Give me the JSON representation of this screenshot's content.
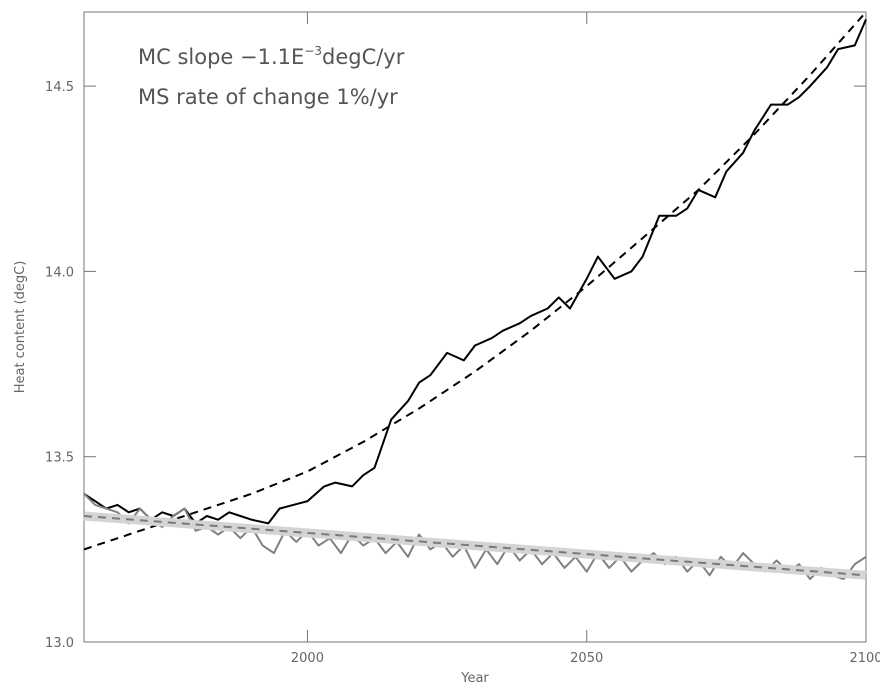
{
  "chart_data": {
    "type": "line",
    "xlabel": "Year",
    "ylabel": "Heat content (degC)",
    "annotations": [
      {
        "text": "MC slope −1.1E",
        "sup": "−3",
        "after": "degC/yr"
      },
      {
        "text": "MS rate of change 1%/yr"
      }
    ],
    "xlim": [
      1960,
      2100
    ],
    "xticks": [
      2000,
      2050,
      2100
    ],
    "ylim": [
      13.0,
      14.7
    ],
    "yticks": [
      {
        "value": 13.0,
        "label": "13.0"
      },
      13.5,
      {
        "value": 14.0,
        "label": "14.0"
      },
      14.5
    ],
    "series": [
      {
        "color": "#000000",
        "style": "solid",
        "x": [
          1960,
          1962,
          1964,
          1966,
          1968,
          1970,
          1972,
          1974,
          1976,
          1978,
          1980,
          1982,
          1984,
          1986,
          1988,
          1990,
          1993,
          1995,
          2000,
          2003,
          2005,
          2008,
          2010,
          2012,
          2015,
          2018,
          2020,
          2022,
          2025,
          2028,
          2030,
          2033,
          2035,
          2038,
          2040,
          2043,
          2045,
          2047,
          2050,
          2052,
          2055,
          2058,
          2060,
          2063,
          2066,
          2068,
          2070,
          2073,
          2075,
          2078,
          2080,
          2083,
          2086,
          2088,
          2090,
          2093,
          2095,
          2098,
          2100
        ],
        "values": [
          13.4,
          13.38,
          13.36,
          13.37,
          13.35,
          13.36,
          13.33,
          13.35,
          13.34,
          13.36,
          13.32,
          13.34,
          13.33,
          13.35,
          13.34,
          13.33,
          13.32,
          13.36,
          13.38,
          13.42,
          13.43,
          13.42,
          13.45,
          13.47,
          13.6,
          13.65,
          13.7,
          13.72,
          13.78,
          13.76,
          13.8,
          13.82,
          13.84,
          13.86,
          13.88,
          13.9,
          13.93,
          13.9,
          13.98,
          14.04,
          13.98,
          14.0,
          14.04,
          14.15,
          14.15,
          14.17,
          14.22,
          14.2,
          14.27,
          14.32,
          14.38,
          14.45,
          14.45,
          14.47,
          14.5,
          14.55,
          14.6,
          14.61,
          14.68
        ]
      },
      {
        "color": "#000000",
        "style": "dashed",
        "x": [
          1960,
          1970,
          1980,
          1990,
          2000,
          2010,
          2020,
          2030,
          2040,
          2050,
          2060,
          2070,
          2080,
          2090,
          2100
        ],
        "values": [
          13.25,
          13.3,
          13.35,
          13.4,
          13.46,
          13.54,
          13.63,
          13.73,
          13.84,
          13.96,
          14.09,
          14.22,
          14.37,
          14.53,
          14.7
        ]
      },
      {
        "color": "#808080",
        "style": "solid",
        "x": [
          1960,
          1962,
          1964,
          1966,
          1968,
          1970,
          1972,
          1974,
          1976,
          1978,
          1980,
          1982,
          1984,
          1986,
          1988,
          1990,
          1992,
          1994,
          1996,
          1998,
          2000,
          2002,
          2004,
          2006,
          2008,
          2010,
          2012,
          2014,
          2016,
          2018,
          2020,
          2022,
          2024,
          2026,
          2028,
          2030,
          2032,
          2034,
          2036,
          2038,
          2040,
          2042,
          2044,
          2046,
          2048,
          2050,
          2052,
          2054,
          2056,
          2058,
          2060,
          2062,
          2064,
          2066,
          2068,
          2070,
          2072,
          2074,
          2076,
          2078,
          2080,
          2082,
          2084,
          2086,
          2088,
          2090,
          2092,
          2094,
          2096,
          2098,
          2100
        ],
        "values": [
          13.4,
          13.37,
          13.36,
          13.35,
          13.32,
          13.36,
          13.33,
          13.31,
          13.34,
          13.36,
          13.3,
          13.31,
          13.29,
          13.31,
          13.28,
          13.31,
          13.26,
          13.24,
          13.3,
          13.27,
          13.3,
          13.26,
          13.28,
          13.24,
          13.29,
          13.26,
          13.28,
          13.24,
          13.27,
          13.23,
          13.29,
          13.25,
          13.27,
          13.23,
          13.26,
          13.2,
          13.25,
          13.21,
          13.26,
          13.22,
          13.25,
          13.21,
          13.24,
          13.2,
          13.23,
          13.19,
          13.24,
          13.2,
          13.23,
          13.19,
          13.22,
          13.24,
          13.21,
          13.23,
          13.19,
          13.22,
          13.18,
          13.23,
          13.2,
          13.24,
          13.21,
          13.19,
          13.22,
          13.19,
          13.21,
          13.17,
          13.2,
          13.18,
          13.17,
          13.21,
          13.23
        ]
      },
      {
        "color": "#7a7a7a",
        "style": "band",
        "band_color": "#d4d4d4",
        "x": [
          1960,
          2100
        ],
        "values": [
          13.34,
          13.18
        ]
      }
    ]
  }
}
